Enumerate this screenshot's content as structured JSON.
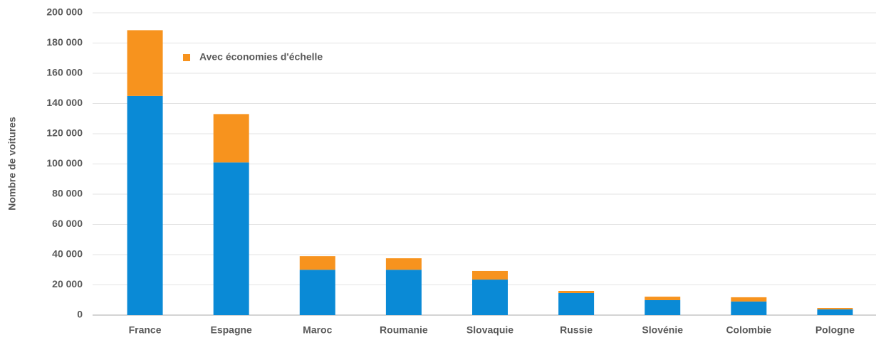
{
  "chart_data": {
    "type": "stacked-bar",
    "ylabel": "Nombre de voitures",
    "categories": [
      "France",
      "Espagne",
      "Maroc",
      "Roumanie",
      "Slovaquie",
      "Russie",
      "Slovénie",
      "Colombie",
      "Pologne"
    ],
    "series": [
      {
        "color": "#0a8ad6",
        "values": [
          145000,
          101000,
          30000,
          30000,
          23500,
          14600,
          9900,
          9000,
          3800
        ]
      },
      {
        "name": "Avec économies d'échelle",
        "color": "#f7931e",
        "values": [
          43500,
          32000,
          9000,
          7600,
          5700,
          1400,
          2300,
          2800,
          900
        ]
      }
    ],
    "ylim": [
      0,
      200000
    ],
    "yticks": [
      {
        "value": 0,
        "label": "0"
      },
      {
        "value": 20000,
        "label": "20 000"
      },
      {
        "value": 40000,
        "label": "40 000"
      },
      {
        "value": 60000,
        "label": "60 000"
      },
      {
        "value": 80000,
        "label": "80 000"
      },
      {
        "value": 100000,
        "label": "100 000"
      },
      {
        "value": 120000,
        "label": "120 000"
      },
      {
        "value": 140000,
        "label": "140 000"
      },
      {
        "value": 160000,
        "label": "160 000"
      },
      {
        "value": 180000,
        "label": "180 000"
      },
      {
        "value": 200000,
        "label": "200 000"
      }
    ],
    "grid": true
  }
}
